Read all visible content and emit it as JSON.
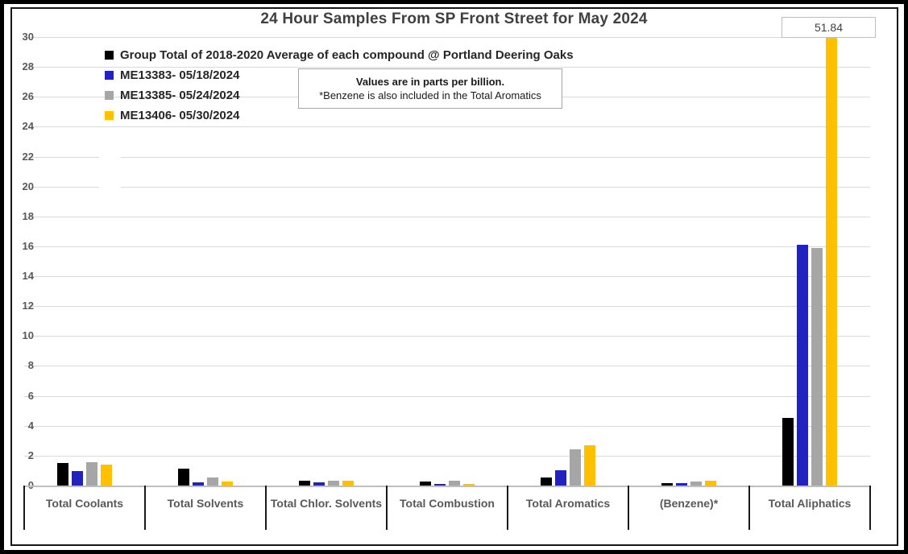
{
  "title": "24 Hour Samples From SP Front Street for May 2024",
  "callout": {
    "value": "51.84"
  },
  "note": {
    "line1": "Values are in parts per billion.",
    "line2": "*Benzene is also included in the Total Aromatics"
  },
  "colors": {
    "avg_black": "#000000",
    "sample1_blue": "#2222be",
    "sample2_gray": "#a6a6a6",
    "sample3_yellow": "#ffc000",
    "gridline": "#d9d9d9",
    "axis_text": "#595959",
    "title_text": "#404040"
  },
  "chart_data": {
    "type": "bar",
    "title": "24 Hour Samples From SP Front Street for May 2024",
    "units": "parts per billion",
    "categories": [
      "Total Coolants",
      "Total Solvents",
      "Total Chlor. Solvents",
      "Total Combustion",
      "Total Aromatics",
      "(Benzene)*",
      "Total Aliphatics"
    ],
    "series": [
      {
        "name": "Group Total of 2018-2020 Average of each compound @ Portland Deering Oaks",
        "color": "#000000",
        "values": [
          1.5,
          1.15,
          0.35,
          0.25,
          0.55,
          0.15,
          4.5
        ]
      },
      {
        "name": "ME13383- 05/18/2024",
        "color": "#2222be",
        "values": [
          0.95,
          0.2,
          0.2,
          0.1,
          1.0,
          0.15,
          16.1
        ]
      },
      {
        "name": "ME13385- 05/24/2024",
        "color": "#a6a6a6",
        "values": [
          1.55,
          0.55,
          0.3,
          0.3,
          2.4,
          0.25,
          15.9
        ]
      },
      {
        "name": "ME13406- 05/30/2024",
        "color": "#ffc000",
        "values": [
          1.4,
          0.25,
          0.35,
          0.1,
          2.7,
          0.35,
          51.84
        ]
      }
    ],
    "ylim": [
      0,
      30
    ],
    "ytick_step": 2,
    "grid": true,
    "legend_position": "top-left",
    "clipped_bar_label": {
      "series": "ME13406- 05/30/2024",
      "category": "Total Aliphatics",
      "value": 51.84
    },
    "xlabel": "",
    "ylabel": ""
  }
}
